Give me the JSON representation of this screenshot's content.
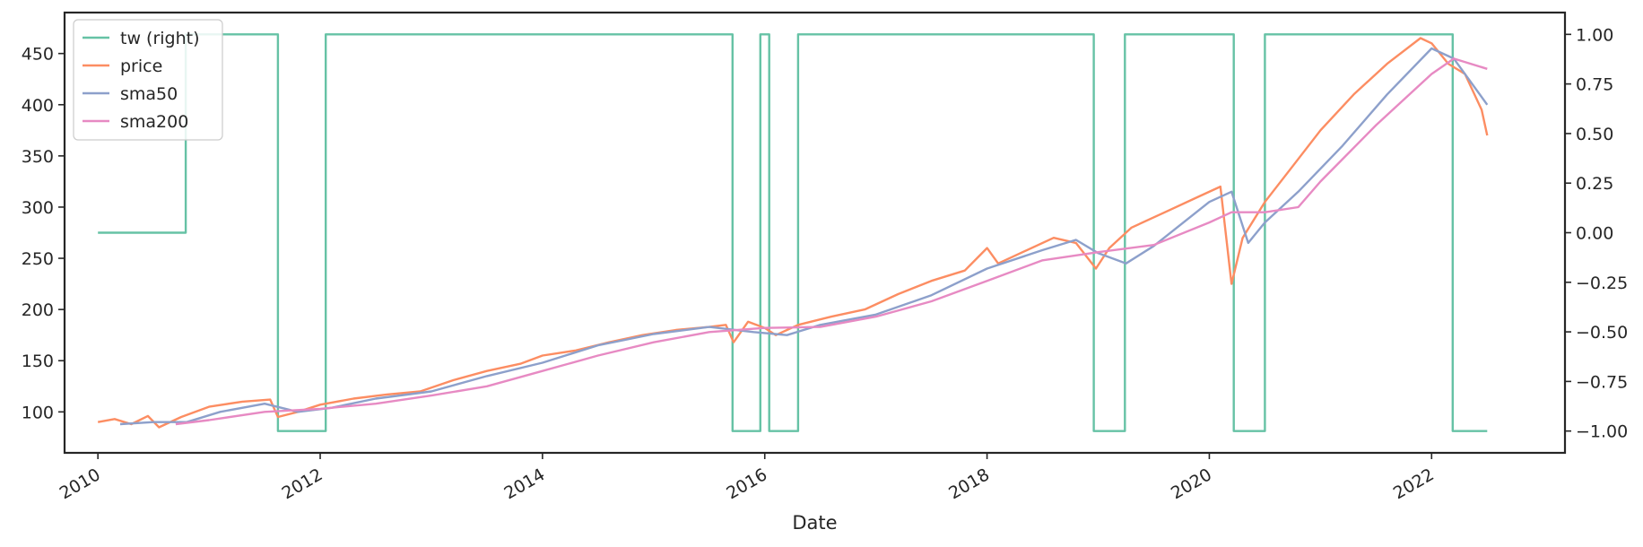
{
  "chart_data": {
    "type": "line",
    "xlabel": "Date",
    "x_ticks": [
      "2010",
      "2012",
      "2014",
      "2016",
      "2018",
      "2020",
      "2022"
    ],
    "y_left_ticks": [
      "100",
      "150",
      "200",
      "250",
      "300",
      "350",
      "400",
      "450"
    ],
    "y_right_ticks": [
      "−1.00",
      "−0.75",
      "−0.50",
      "−0.25",
      "0.00",
      "0.25",
      "0.50",
      "0.75",
      "1.00"
    ],
    "x_range": [
      2009.7,
      2023.2
    ],
    "y_left_range": [
      60,
      490
    ],
    "y_right_range": [
      -1.11,
      1.11
    ],
    "legend_position": "upper-left",
    "grid": false,
    "series": [
      {
        "name": "tw (right)",
        "axis": "right",
        "color": "#66c2a5",
        "step": true,
        "x": [
          2010.0,
          2010.79,
          2011.62,
          2012.05,
          2015.71,
          2015.96,
          2016.04,
          2016.3,
          2018.96,
          2019.24,
          2020.22,
          2020.5,
          2022.19,
          2022.5
        ],
        "y": [
          0.0,
          1.0,
          -1.0,
          1.0,
          -1.0,
          1.0,
          -1.0,
          1.0,
          -1.0,
          1.0,
          -1.0,
          1.0,
          -1.0,
          -1.0
        ]
      },
      {
        "name": "price",
        "axis": "left",
        "color": "#fc8d62",
        "x": [
          2010.0,
          2010.15,
          2010.3,
          2010.45,
          2010.55,
          2010.75,
          2011.0,
          2011.3,
          2011.55,
          2011.62,
          2011.8,
          2012.0,
          2012.3,
          2012.6,
          2012.9,
          2013.2,
          2013.5,
          2013.8,
          2014.0,
          2014.3,
          2014.6,
          2014.9,
          2015.2,
          2015.5,
          2015.65,
          2015.72,
          2015.85,
          2016.0,
          2016.1,
          2016.3,
          2016.6,
          2016.9,
          2017.2,
          2017.5,
          2017.8,
          2018.0,
          2018.1,
          2018.3,
          2018.6,
          2018.8,
          2018.98,
          2019.1,
          2019.3,
          2019.6,
          2019.9,
          2020.1,
          2020.2,
          2020.3,
          2020.5,
          2020.75,
          2021.0,
          2021.3,
          2021.6,
          2021.9,
          2022.0,
          2022.15,
          2022.3,
          2022.45,
          2022.5
        ],
        "y": [
          90,
          93,
          88,
          96,
          85,
          95,
          105,
          110,
          112,
          95,
          100,
          107,
          113,
          117,
          120,
          131,
          140,
          147,
          155,
          160,
          168,
          175,
          180,
          183,
          185,
          168,
          188,
          182,
          175,
          185,
          193,
          200,
          215,
          228,
          238,
          260,
          245,
          255,
          270,
          265,
          240,
          260,
          280,
          295,
          310,
          320,
          225,
          270,
          305,
          340,
          375,
          410,
          440,
          465,
          460,
          440,
          430,
          395,
          370
        ]
      },
      {
        "name": "sma50",
        "axis": "left",
        "color": "#8da0cb",
        "x": [
          2010.2,
          2010.5,
          2010.8,
          2011.1,
          2011.5,
          2011.8,
          2012.1,
          2012.5,
          2013.0,
          2013.5,
          2014.0,
          2014.5,
          2015.0,
          2015.5,
          2015.9,
          2016.2,
          2016.5,
          2017.0,
          2017.5,
          2018.0,
          2018.5,
          2018.8,
          2019.0,
          2019.25,
          2019.5,
          2020.0,
          2020.2,
          2020.35,
          2020.5,
          2020.8,
          2021.2,
          2021.6,
          2022.0,
          2022.2,
          2022.5
        ],
        "y": [
          88,
          90,
          90,
          100,
          108,
          100,
          104,
          113,
          120,
          135,
          148,
          165,
          176,
          183,
          178,
          175,
          185,
          195,
          214,
          240,
          258,
          268,
          255,
          245,
          262,
          305,
          315,
          265,
          285,
          315,
          360,
          410,
          455,
          445,
          400
        ]
      },
      {
        "name": "sma200",
        "axis": "left",
        "color": "#e78ac3",
        "x": [
          2010.7,
          2011.0,
          2011.5,
          2012.0,
          2012.5,
          2013.0,
          2013.5,
          2014.0,
          2014.5,
          2015.0,
          2015.5,
          2016.0,
          2016.5,
          2017.0,
          2017.5,
          2018.0,
          2018.5,
          2019.0,
          2019.5,
          2020.0,
          2020.2,
          2020.5,
          2020.8,
          2021.0,
          2021.5,
          2022.0,
          2022.2,
          2022.5
        ],
        "y": [
          88,
          92,
          100,
          103,
          108,
          116,
          125,
          140,
          155,
          168,
          178,
          182,
          183,
          193,
          208,
          228,
          248,
          256,
          263,
          285,
          295,
          295,
          300,
          325,
          380,
          430,
          445,
          435
        ]
      }
    ]
  }
}
